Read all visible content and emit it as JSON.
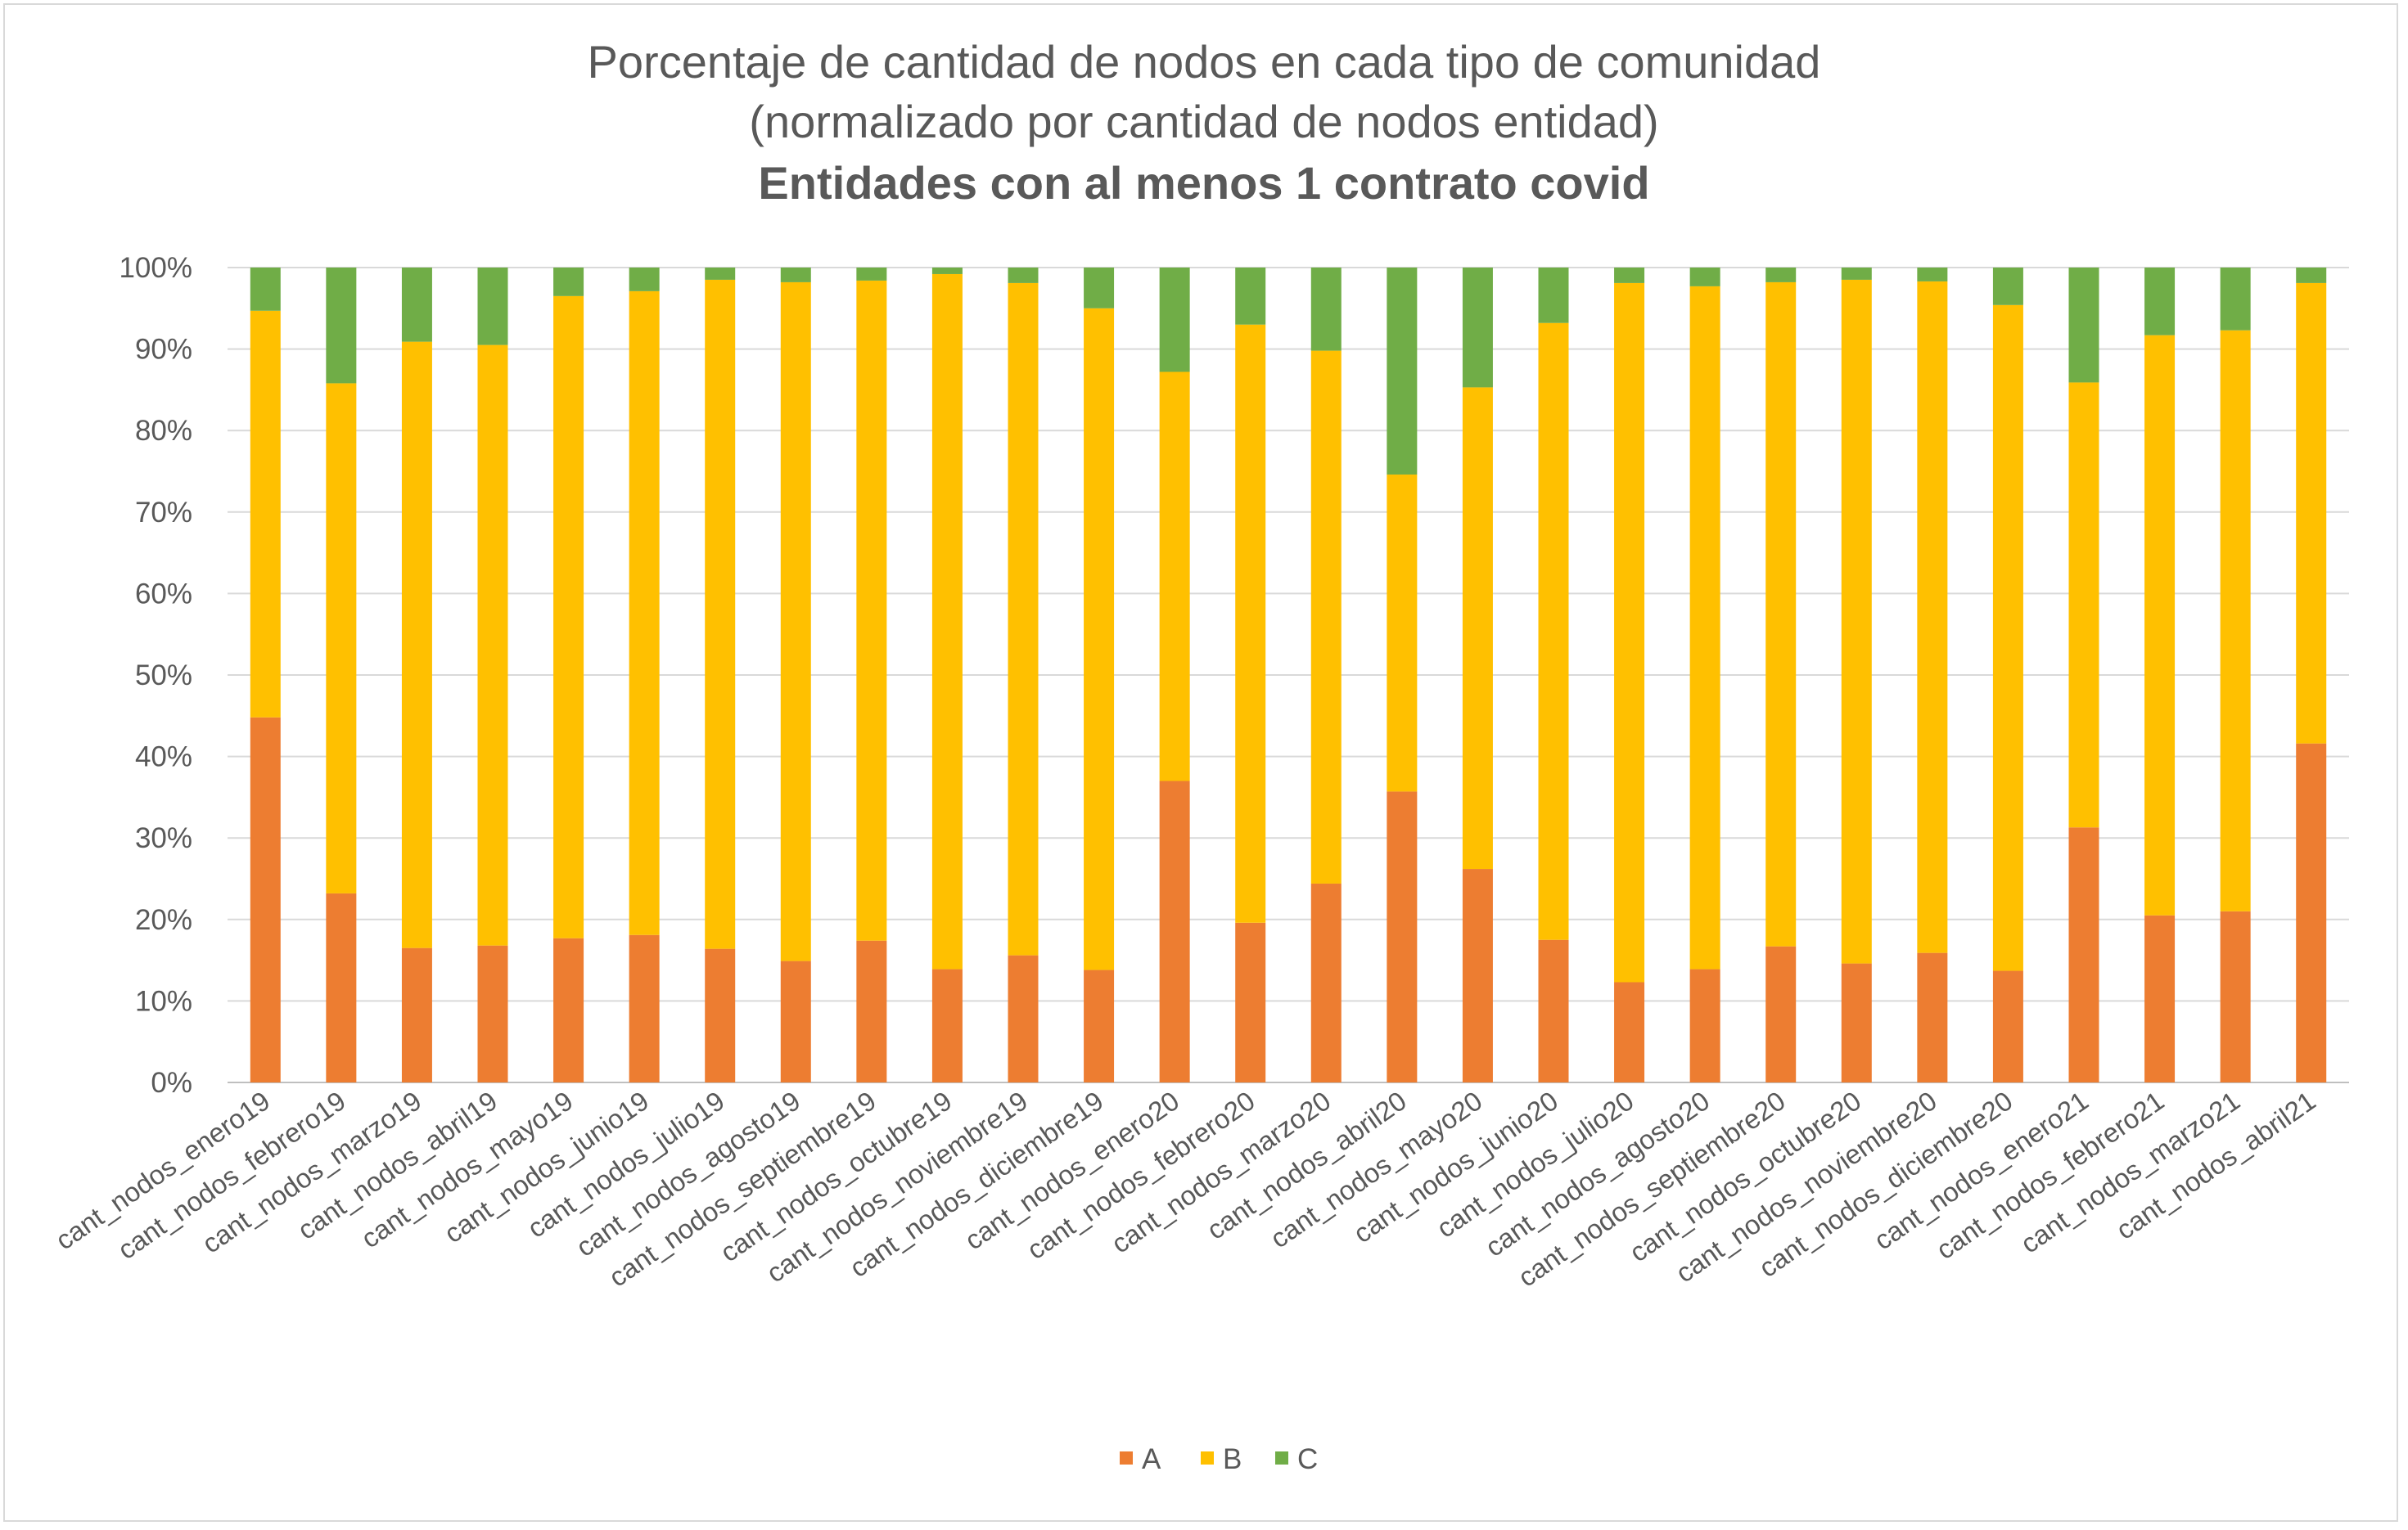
{
  "chart_data": {
    "type": "bar",
    "stacked": true,
    "normalized": true,
    "title_lines": [
      "Porcentaje de cantidad de nodos en cada tipo de comunidad",
      "(normalizado por cantidad de nodos entidad)",
      "Entidades con al menos 1 contrato covid"
    ],
    "xlabel": "",
    "ylabel": "",
    "ylim": [
      0,
      100
    ],
    "y_ticks": [
      "0%",
      "10%",
      "20%",
      "30%",
      "40%",
      "50%",
      "60%",
      "70%",
      "80%",
      "90%",
      "100%"
    ],
    "grid": true,
    "legend_position": "bottom",
    "categories": [
      "cant_nodos_enero19",
      "cant_nodos_febrero19",
      "cant_nodos_marzo19",
      "cant_nodos_abril19",
      "cant_nodos_mayo19",
      "cant_nodos_junio19",
      "cant_nodos_julio19",
      "cant_nodos_agosto19",
      "cant_nodos_septiembre19",
      "cant_nodos_octubre19",
      "cant_nodos_noviembre19",
      "cant_nodos_diciembre19",
      "cant_nodos_enero20",
      "cant_nodos_febrero20",
      "cant_nodos_marzo20",
      "cant_nodos_abril20",
      "cant_nodos_mayo20",
      "cant_nodos_junio20",
      "cant_nodos_julio20",
      "cant_nodos_agosto20",
      "cant_nodos_septiembre20",
      "cant_nodos_octubre20",
      "cant_nodos_noviembre20",
      "cant_nodos_diciembre20",
      "cant_nodos_enero21",
      "cant_nodos_febrero21",
      "cant_nodos_marzo21",
      "cant_nodos_abril21"
    ],
    "series": [
      {
        "name": "A",
        "color": "#ED7D31",
        "values": [
          44.8,
          23.2,
          16.5,
          16.8,
          17.7,
          18.1,
          16.4,
          14.9,
          17.4,
          13.9,
          15.6,
          13.8,
          37.0,
          19.6,
          24.4,
          35.7,
          26.2,
          17.5,
          12.3,
          13.9,
          16.7,
          14.6,
          15.9,
          13.7,
          31.3,
          20.5,
          21.0,
          41.6
        ]
      },
      {
        "name": "B",
        "color": "#FFC000",
        "values": [
          49.9,
          62.6,
          74.4,
          73.7,
          78.8,
          79.0,
          82.1,
          83.3,
          81.0,
          85.3,
          82.5,
          81.2,
          50.2,
          73.4,
          65.4,
          38.9,
          59.1,
          75.7,
          85.8,
          83.8,
          81.5,
          83.9,
          82.4,
          81.7,
          54.6,
          71.2,
          71.3,
          56.5
        ]
      },
      {
        "name": "C",
        "color": "#70AD47",
        "values": [
          5.3,
          14.2,
          9.1,
          9.5,
          3.5,
          2.9,
          1.5,
          1.8,
          1.6,
          0.8,
          1.9,
          5.0,
          12.8,
          7.0,
          10.2,
          25.4,
          14.7,
          6.8,
          1.9,
          2.3,
          1.8,
          1.5,
          1.7,
          4.6,
          14.1,
          8.3,
          7.7,
          1.9
        ]
      }
    ]
  }
}
